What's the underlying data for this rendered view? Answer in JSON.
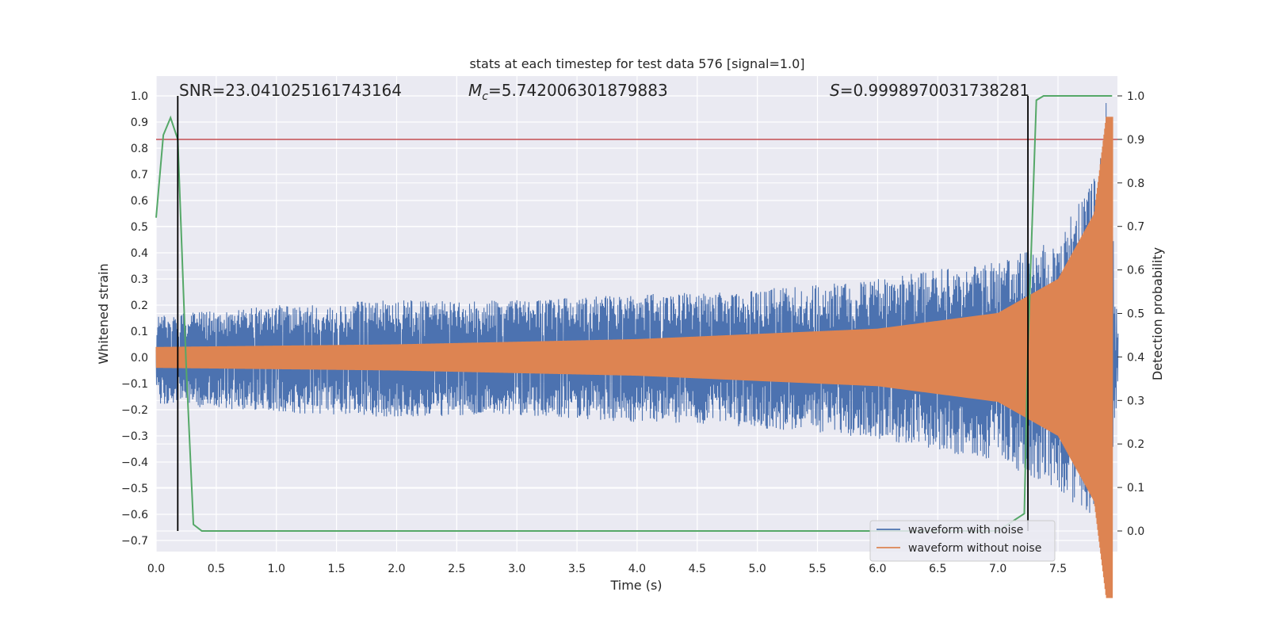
{
  "chart_data": {
    "type": "line",
    "title": "stats at each timestep for test data 576 [signal=1.0]",
    "xlabel": "Time (s)",
    "ylabel": "Whitened strain",
    "y2label": "Detection probability",
    "xlim": [
      0.0,
      8.0
    ],
    "ylim": [
      -0.75,
      1.07
    ],
    "y2lim": [
      -0.05,
      1.03
    ],
    "xticks": [
      "0.0",
      "0.5",
      "1.0",
      "1.5",
      "2.0",
      "2.5",
      "3.0",
      "3.5",
      "4.0",
      "4.5",
      "5.0",
      "5.5",
      "6.0",
      "6.5",
      "7.0",
      "7.5"
    ],
    "yticks": [
      "1.0",
      "0.9",
      "0.8",
      "0.7",
      "0.6",
      "0.5",
      "0.4",
      "0.3",
      "0.2",
      "0.1",
      "0.0",
      "−0.1",
      "−0.2",
      "−0.3",
      "−0.4",
      "−0.5",
      "−0.6",
      "−0.7"
    ],
    "y2ticks": [
      "1.0",
      "0.9",
      "0.8",
      "0.7",
      "0.6",
      "0.5",
      "0.4",
      "0.3",
      "0.2",
      "0.1",
      "0.0"
    ],
    "annotations": {
      "snr": "SNR=23.041025161743164",
      "mc_symbol": "M",
      "mc_sub": "c",
      "mc_value": "=5.742006301879883",
      "s_symbol": "S",
      "s_value": "=0.9998970031738281"
    },
    "legend": {
      "position": "lower-right",
      "entries": [
        "waveform with noise",
        "waveform without noise"
      ]
    },
    "colors": {
      "noise": "#4c72b0",
      "clean": "#dd8452",
      "prob": "#55a868",
      "threshold": "#c44e52",
      "vline": "#000000",
      "background": "#eaeaf2",
      "grid": "#ffffff"
    },
    "threshold": 0.9,
    "vlines": [
      0.18,
      7.25
    ],
    "series": [
      {
        "name": "waveform with noise",
        "description": "noisy whitened strain, envelope in strain units",
        "envelope": [
          {
            "t": 0.0,
            "upper": 0.16,
            "lower": -0.18
          },
          {
            "t": 1.0,
            "upper": 0.2,
            "lower": -0.21
          },
          {
            "t": 2.0,
            "upper": 0.22,
            "lower": -0.23
          },
          {
            "t": 3.0,
            "upper": 0.22,
            "lower": -0.22
          },
          {
            "t": 4.0,
            "upper": 0.24,
            "lower": -0.25
          },
          {
            "t": 5.0,
            "upper": 0.26,
            "lower": -0.27
          },
          {
            "t": 6.0,
            "upper": 0.3,
            "lower": -0.31
          },
          {
            "t": 6.5,
            "upper": 0.34,
            "lower": -0.36
          },
          {
            "t": 7.0,
            "upper": 0.37,
            "lower": -0.4
          },
          {
            "t": 7.5,
            "upper": 0.45,
            "lower": -0.5
          },
          {
            "t": 7.85,
            "upper": 0.75,
            "lower": -0.66
          },
          {
            "t": 7.9,
            "upper": 1.0,
            "lower": -0.66
          },
          {
            "t": 8.0,
            "upper": 0.12,
            "lower": -0.18
          }
        ]
      },
      {
        "name": "waveform without noise",
        "description": "clean chirp template, amplitude envelope in strain units",
        "envelope": [
          {
            "t": 0.0,
            "amp": 0.04
          },
          {
            "t": 2.0,
            "amp": 0.05
          },
          {
            "t": 4.0,
            "amp": 0.07
          },
          {
            "t": 6.0,
            "amp": 0.11
          },
          {
            "t": 7.0,
            "amp": 0.17
          },
          {
            "t": 7.5,
            "amp": 0.3
          },
          {
            "t": 7.8,
            "amp": 0.55
          },
          {
            "t": 7.9,
            "amp": 0.92
          }
        ]
      },
      {
        "name": "detection probability",
        "x": [
          0.0,
          0.06,
          0.12,
          0.18,
          0.25,
          0.31,
          0.38,
          0.5,
          1.0,
          2.0,
          3.0,
          4.0,
          5.0,
          6.0,
          7.0,
          7.22,
          7.25,
          7.32,
          7.38,
          7.5,
          7.95
        ],
        "y": [
          0.72,
          0.91,
          0.95,
          0.9,
          0.38,
          0.015,
          0.0,
          0.0,
          0.0,
          0.0,
          0.0,
          0.0,
          0.0,
          0.0,
          0.0,
          0.04,
          0.42,
          0.99,
          1.0,
          1.0,
          1.0
        ]
      }
    ]
  }
}
